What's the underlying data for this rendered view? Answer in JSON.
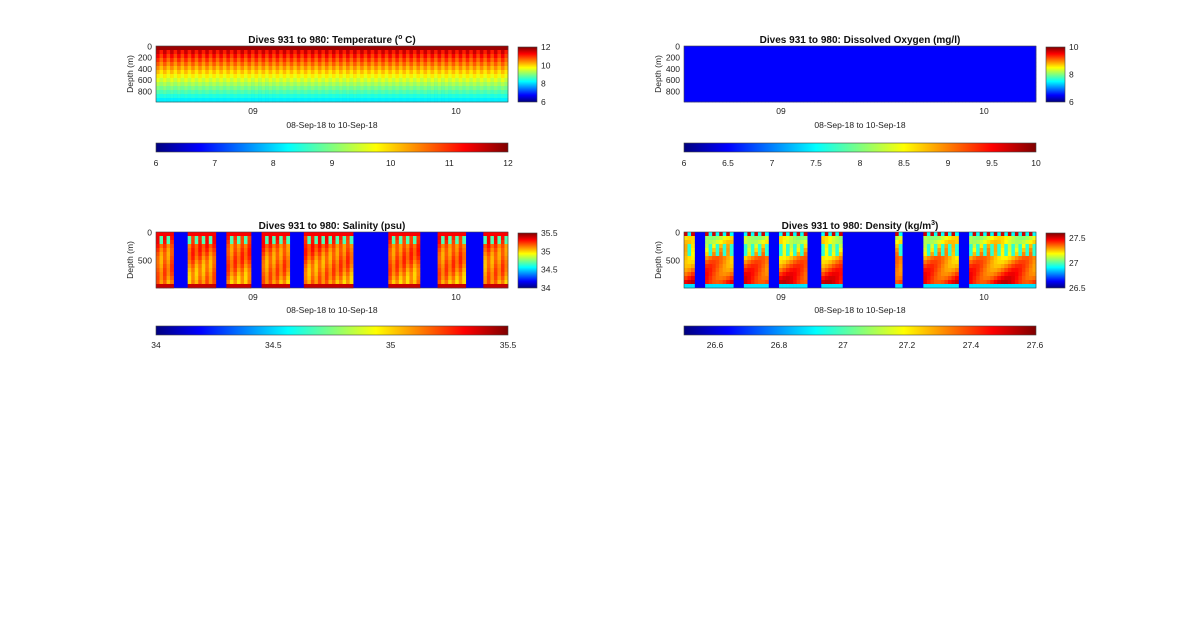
{
  "figure": {
    "background": "#ffffff"
  },
  "chart_data": [
    {
      "type": "heatmap",
      "title": "Dives 931 to 980: Temperature (",
      "title_sup": "o",
      "title_suffix": " C)",
      "xlabel": "08-Sep-18 to 10-Sep-18",
      "ylabel": "Depth (m)",
      "x_ticks": [
        "09",
        "10"
      ],
      "y_ticks": [
        "0",
        "200",
        "400",
        "600",
        "800"
      ],
      "ylim": [
        0,
        1000
      ],
      "variable": "temperature",
      "profiles": 50,
      "gaps": [],
      "colormap": "jet",
      "clim": [
        6,
        12
      ],
      "colorbar_ticks": [
        "6",
        "8",
        "10",
        "12"
      ],
      "hcolorbar_ticks": [
        "6",
        "7",
        "8",
        "9",
        "10",
        "11",
        "12"
      ]
    },
    {
      "type": "heatmap",
      "title": "Dives 931 to 980: Dissolved Oxygen (mg/l)",
      "title_sup": "",
      "title_suffix": "",
      "xlabel": "08-Sep-18 to 10-Sep-18",
      "ylabel": "Depth (m)",
      "x_ticks": [
        "09",
        "10"
      ],
      "y_ticks": [
        "0",
        "200",
        "400",
        "600",
        "800"
      ],
      "ylim": [
        0,
        1000
      ],
      "variable": "oxygen",
      "profiles": 50,
      "gaps": [],
      "colormap": "jet",
      "clim": [
        6,
        10
      ],
      "colorbar_ticks": [
        "6",
        "8",
        "10"
      ],
      "hcolorbar_ticks": [
        "6",
        "6.5",
        "7",
        "7.5",
        "8",
        "8.5",
        "9",
        "9.5",
        "10"
      ]
    },
    {
      "type": "heatmap",
      "title": "Dives 931 to 980: Salinity (psu)",
      "title_sup": "",
      "title_suffix": "",
      "xlabel": "08-Sep-18 to 10-Sep-18",
      "ylabel": "Depth (m)",
      "x_ticks": [
        "09",
        "10"
      ],
      "y_ticks": [
        "0",
        "500"
      ],
      "ylim": [
        0,
        1000
      ],
      "variable": "salinity",
      "profiles": 50,
      "gaps": [
        [
          0.05,
          0.09
        ],
        [
          0.17,
          0.2
        ],
        [
          0.275,
          0.3
        ],
        [
          0.38,
          0.415
        ],
        [
          0.565,
          0.655
        ],
        [
          0.755,
          0.795
        ],
        [
          0.885,
          0.93
        ]
      ],
      "colormap": "jet",
      "clim": [
        34,
        35.5
      ],
      "colorbar_ticks": [
        "34",
        "34.5",
        "35",
        "35.5"
      ],
      "hcolorbar_ticks": [
        "34",
        "34.5",
        "35",
        "35.5"
      ]
    },
    {
      "type": "heatmap",
      "title": "Dives 931 to 980: Density (kg/m",
      "title_sup": "3",
      "title_suffix": ")",
      "xlabel": "08-Sep-18 to 10-Sep-18",
      "ylabel": "Depth (m)",
      "x_ticks": [
        "09",
        "10"
      ],
      "y_ticks": [
        "0",
        "500"
      ],
      "ylim": [
        0,
        1000
      ],
      "variable": "density",
      "profiles": 50,
      "gaps": [
        [
          0.03,
          0.06
        ],
        [
          0.14,
          0.17
        ],
        [
          0.245,
          0.27
        ],
        [
          0.355,
          0.385
        ],
        [
          0.455,
          0.595
        ],
        [
          0.625,
          0.675
        ],
        [
          0.78,
          0.81
        ]
      ],
      "colormap": "jet",
      "clim": [
        26.5,
        27.6
      ],
      "colorbar_ticks": [
        "26.5",
        "27",
        "27.5"
      ],
      "hcolorbar_ticks": [
        "26.6",
        "26.8",
        "27",
        "27.2",
        "27.4",
        "27.6"
      ]
    }
  ]
}
